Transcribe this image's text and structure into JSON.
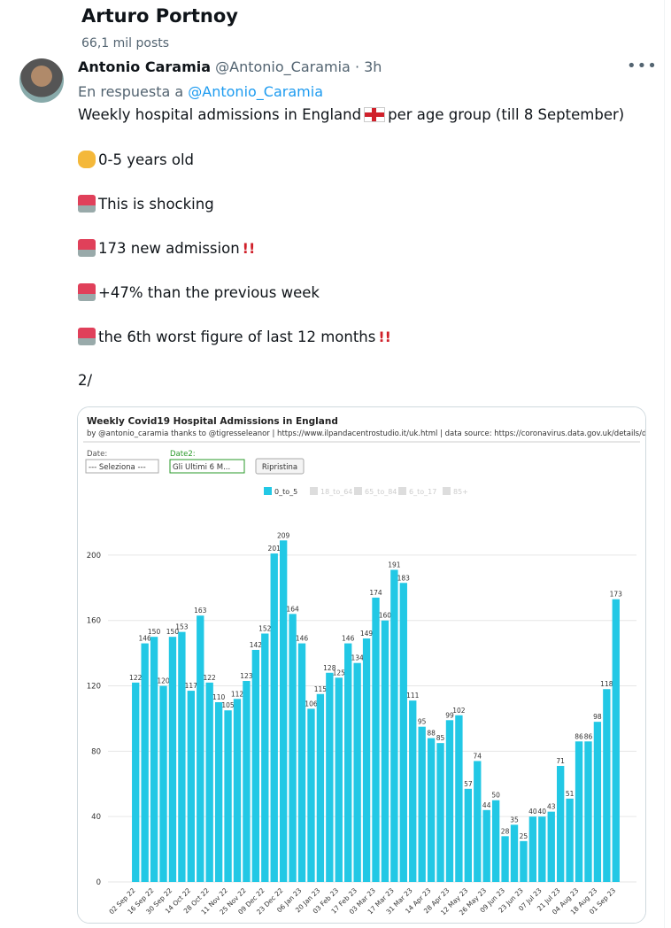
{
  "header": {
    "title": "Arturo Portnoy",
    "posts": "66,1 mil posts"
  },
  "tweet": {
    "author": "Antonio Caramia",
    "handle": "@Antonio_Caramia",
    "time": "· 3h",
    "reply_prefix": "En respuesta a",
    "reply_handle": "@Antonio_Caramia",
    "line1a": "Weekly hospital admissions in England",
    "line1b": "per age group (till 8 September)",
    "items": [
      "0-5 years old",
      "This is shocking",
      "173 new admission",
      "+47% than the previous week",
      "the 6th worst figure of last 12 months",
      "2/"
    ]
  },
  "chart_data": {
    "type": "bar",
    "title": "Weekly Covid19 Hospital Admissions in England",
    "subtitle": "by @antonio_caramia thanks to @tigresseleanor | https://www.ilpandacentrostudio.it/uk.html | data source: https://coronavirus.data.gov.uk/details/downl...",
    "controls": {
      "date_label": "Date:",
      "date_value": "--- Seleziona ---",
      "date2_label": "Date2:",
      "date2_value": "Gli Ultimi 6 M...",
      "reset": "Ripristina"
    },
    "legend_disabled": [
      "18_to_64",
      "65_to_84",
      "6_to_17",
      "85+"
    ],
    "categories": [
      "02 Sep 22",
      null,
      "16 Sep 22",
      null,
      "30 Sep 22",
      null,
      "14 Oct 22",
      null,
      "28 Oct 22",
      null,
      "11 Nov 22",
      null,
      "25 Nov 22",
      null,
      "09 Dec 22",
      null,
      "23 Dec 22",
      null,
      "06 Jan 23",
      null,
      "20 Jan 23",
      null,
      "03 Feb 23",
      null,
      "17 Feb 23",
      null,
      "03 Mar 23",
      null,
      "17 Mar 23",
      null,
      "31 Mar 23",
      null,
      "14 Apr 23",
      null,
      "28 Apr 23",
      null,
      "12 May 23",
      null,
      "26 May 23",
      null,
      "09 Jun 23",
      null,
      "23 Jun 23",
      null,
      "07 Jul 23",
      null,
      "21 Jul 23",
      null,
      "04 Aug 23",
      null,
      "18 Aug 23",
      null,
      "01 Sep 23"
    ],
    "series": [
      {
        "name": "0_to_5",
        "color": "#22c8e5",
        "values": [
          122,
          146,
          150,
          120,
          150,
          153,
          117,
          163,
          122,
          110,
          105,
          112,
          123,
          142,
          152,
          201,
          209,
          164,
          146,
          106,
          115,
          128,
          125,
          146,
          134,
          149,
          174,
          160,
          191,
          183,
          111,
          95,
          88,
          85,
          99,
          102,
          57,
          74,
          44,
          50,
          28,
          35,
          25,
          40,
          40,
          43,
          71,
          51,
          86,
          86,
          98,
          118,
          173
        ]
      }
    ],
    "ylim": [
      0,
      220
    ],
    "yticks": [
      0,
      40,
      80,
      120,
      160,
      200
    ],
    "grid": true
  }
}
